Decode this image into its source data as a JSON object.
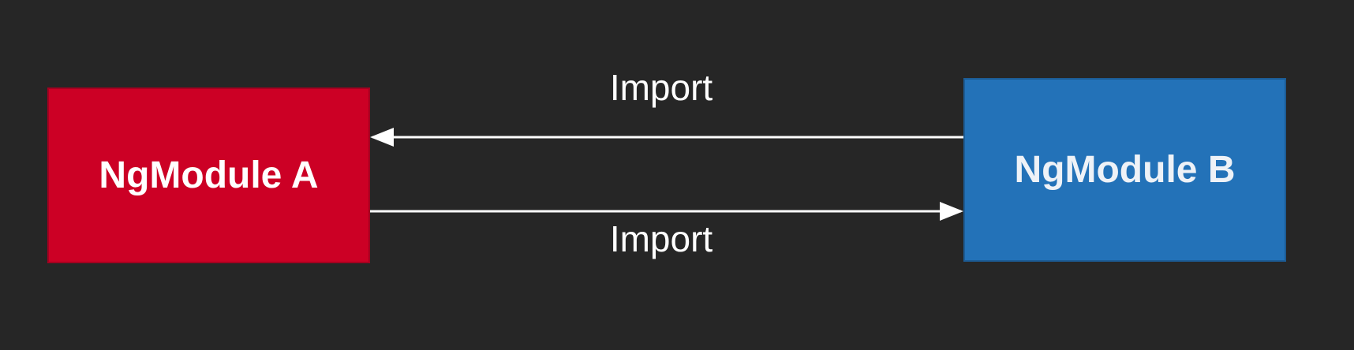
{
  "nodes": {
    "a": {
      "label": "NgModule A",
      "color": "#cc0025"
    },
    "b": {
      "label": "NgModule B",
      "color": "#2372b8"
    }
  },
  "edges": [
    {
      "from": "NgModule B",
      "to": "NgModule A",
      "label": "Import"
    },
    {
      "from": "NgModule A",
      "to": "NgModule B",
      "label": "Import"
    }
  ],
  "colors": {
    "background": "#262626",
    "arrow": "#ffffff"
  }
}
